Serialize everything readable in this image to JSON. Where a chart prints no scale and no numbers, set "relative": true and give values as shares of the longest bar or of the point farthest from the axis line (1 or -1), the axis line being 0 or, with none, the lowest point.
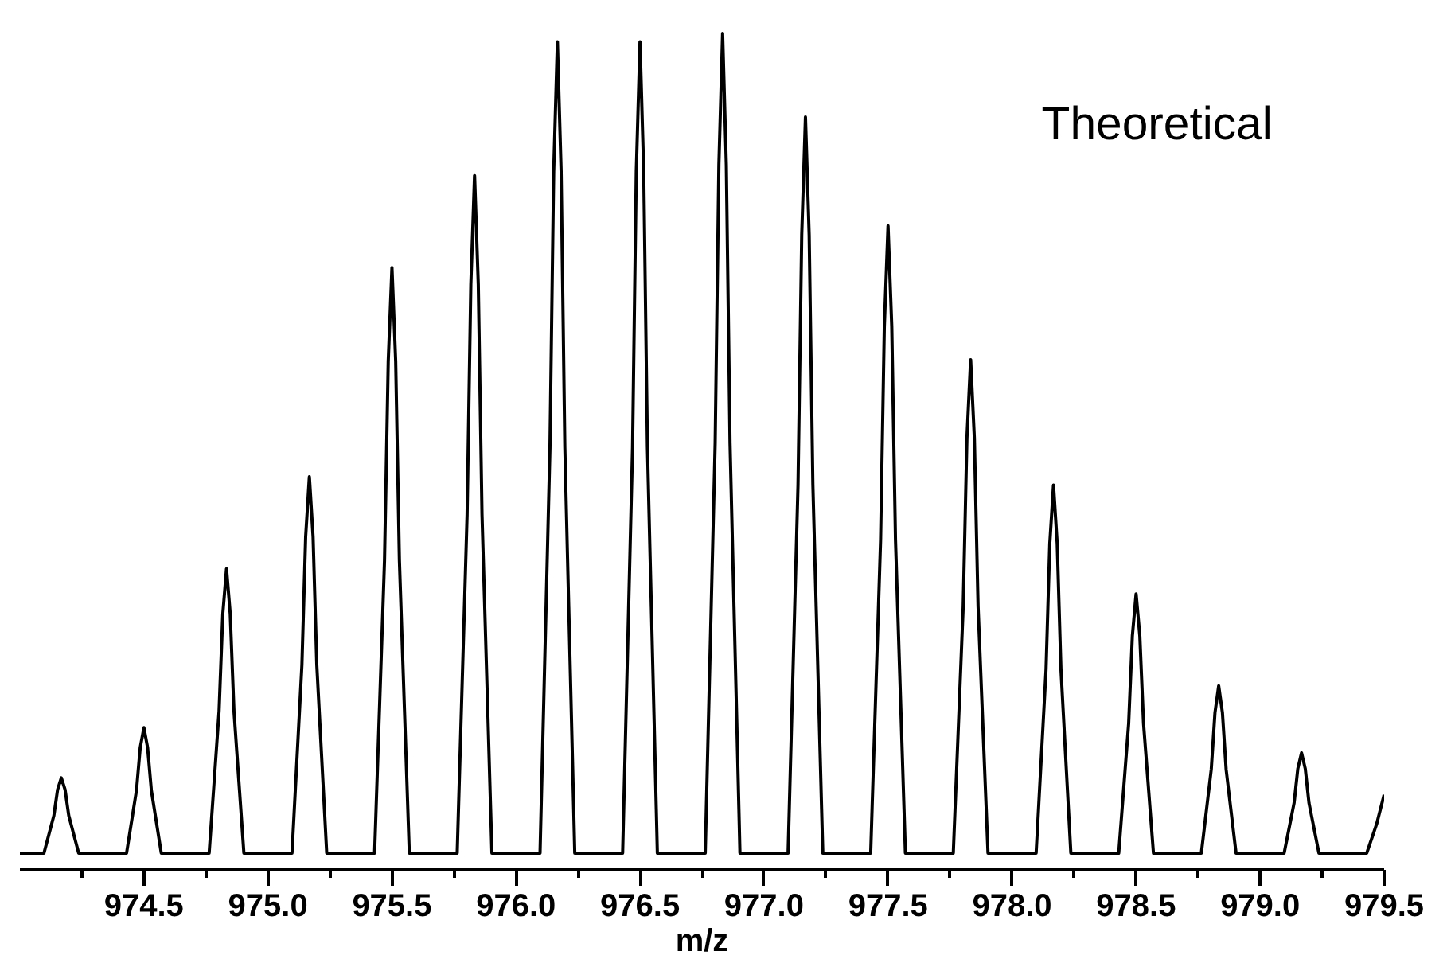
{
  "chart_data": {
    "type": "line",
    "relative": true,
    "xlabel": "m/z",
    "annotations": [
      "Theoretical"
    ],
    "xlim": [
      974.0,
      979.5
    ],
    "xticks": [
      {
        "value": 974.25,
        "label": null
      },
      974.5,
      {
        "value": 974.75,
        "label": null
      },
      {
        "value": 975.0,
        "label": "975.0"
      },
      {
        "value": 975.25,
        "label": null
      },
      975.5,
      {
        "value": 975.75,
        "label": null
      },
      {
        "value": 976.0,
        "label": "976.0"
      },
      {
        "value": 976.25,
        "label": null
      },
      976.5,
      {
        "value": 976.75,
        "label": null
      },
      {
        "value": 977.0,
        "label": "977.0"
      },
      {
        "value": 977.25,
        "label": null
      },
      977.5,
      {
        "value": 977.75,
        "label": null
      },
      {
        "value": 978.0,
        "label": "978.0"
      },
      {
        "value": 978.25,
        "label": null
      },
      978.5,
      {
        "value": 978.75,
        "label": null
      },
      {
        "value": 979.0,
        "label": "979.0"
      },
      {
        "value": 979.25,
        "label": null
      },
      979.5
    ],
    "tick_labels": "x",
    "grid": false,
    "series": [
      {
        "color": "#000000",
        "x": [
          974.0,
          974.097,
          974.137,
          974.152,
          974.167,
          974.182,
          974.197,
          974.237,
          974.43,
          974.47,
          974.485,
          974.5,
          974.515,
          974.53,
          974.57,
          974.763,
          974.803,
          974.818,
          974.833,
          974.848,
          974.863,
          974.903,
          975.097,
          975.137,
          975.152,
          975.167,
          975.182,
          975.197,
          975.237,
          975.43,
          975.47,
          975.485,
          975.5,
          975.515,
          975.53,
          975.57,
          975.763,
          975.803,
          975.818,
          975.833,
          975.848,
          975.863,
          975.903,
          976.097,
          976.137,
          976.152,
          976.167,
          976.182,
          976.197,
          976.237,
          976.43,
          976.47,
          976.485,
          976.5,
          976.515,
          976.53,
          976.57,
          976.763,
          976.803,
          976.818,
          976.833,
          976.848,
          976.863,
          976.903,
          977.097,
          977.137,
          977.152,
          977.167,
          977.182,
          977.197,
          977.237,
          977.43,
          977.47,
          977.485,
          977.5,
          977.515,
          977.53,
          977.57,
          977.763,
          977.803,
          977.818,
          977.833,
          977.848,
          977.863,
          977.903,
          978.097,
          978.137,
          978.152,
          978.167,
          978.182,
          978.197,
          978.237,
          978.43,
          978.47,
          978.485,
          978.5,
          978.515,
          978.53,
          978.57,
          978.763,
          978.803,
          978.818,
          978.833,
          978.848,
          978.863,
          978.903,
          979.097,
          979.137,
          979.152,
          979.167,
          979.182,
          979.197,
          979.237,
          979.43,
          979.47,
          979.5
        ],
        "values": [
          0.02,
          0.02,
          0.065,
          0.096,
          0.11,
          0.096,
          0.065,
          0.02,
          0.02,
          0.095,
          0.146,
          0.17,
          0.146,
          0.095,
          0.02,
          0.02,
          0.19,
          0.306,
          0.36,
          0.306,
          0.19,
          0.02,
          0.02,
          0.245,
          0.398,
          0.47,
          0.398,
          0.245,
          0.02,
          0.02,
          0.37,
          0.608,
          0.72,
          0.608,
          0.37,
          0.02,
          0.02,
          0.425,
          0.7,
          0.83,
          0.7,
          0.425,
          0.02,
          0.02,
          0.505,
          0.835,
          0.99,
          0.835,
          0.505,
          0.02,
          0.02,
          0.505,
          0.835,
          0.99,
          0.835,
          0.505,
          0.02,
          0.02,
          0.51,
          0.843,
          1.0,
          0.843,
          0.51,
          0.02,
          0.02,
          0.46,
          0.759,
          0.9,
          0.759,
          0.46,
          0.02,
          0.02,
          0.395,
          0.65,
          0.77,
          0.65,
          0.395,
          0.02,
          0.02,
          0.315,
          0.516,
          0.61,
          0.516,
          0.315,
          0.02,
          0.02,
          0.24,
          0.39,
          0.46,
          0.39,
          0.24,
          0.02,
          0.02,
          0.175,
          0.28,
          0.33,
          0.28,
          0.175,
          0.02,
          0.02,
          0.12,
          0.188,
          0.22,
          0.188,
          0.12,
          0.02,
          0.02,
          0.08,
          0.121,
          0.14,
          0.121,
          0.08,
          0.02,
          0.02,
          0.055,
          0.09
        ]
      }
    ]
  }
}
